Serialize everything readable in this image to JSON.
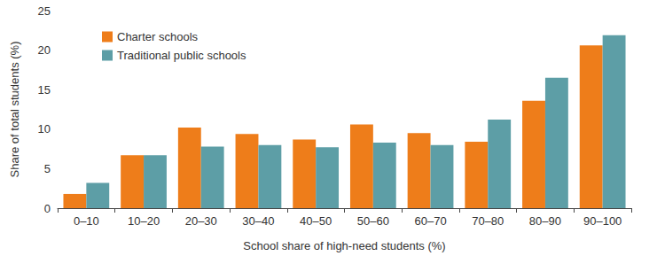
{
  "chart_data": {
    "type": "bar",
    "x_label": "School share of high-need students (%)",
    "y_label": "Share of total students (%)",
    "categories": [
      "0–10",
      "10–20",
      "20–30",
      "30–40",
      "40–50",
      "50–60",
      "60–70",
      "70–80",
      "80–90",
      "90–100"
    ],
    "series": [
      {
        "name": "Charter schools",
        "color": "#ee7d1a",
        "values": [
          1.8,
          6.7,
          10.2,
          9.4,
          8.7,
          10.6,
          9.5,
          8.4,
          13.6,
          20.6
        ]
      },
      {
        "name": "Traditional public schools",
        "color": "#5d9ea6",
        "values": [
          3.2,
          6.7,
          7.8,
          8.0,
          7.7,
          8.3,
          8.0,
          11.2,
          16.5,
          21.9
        ]
      }
    ],
    "ylim": [
      0,
      25
    ],
    "yticks": [
      0,
      5,
      10,
      15,
      20,
      25
    ],
    "grid": false,
    "legend": "upper left"
  }
}
